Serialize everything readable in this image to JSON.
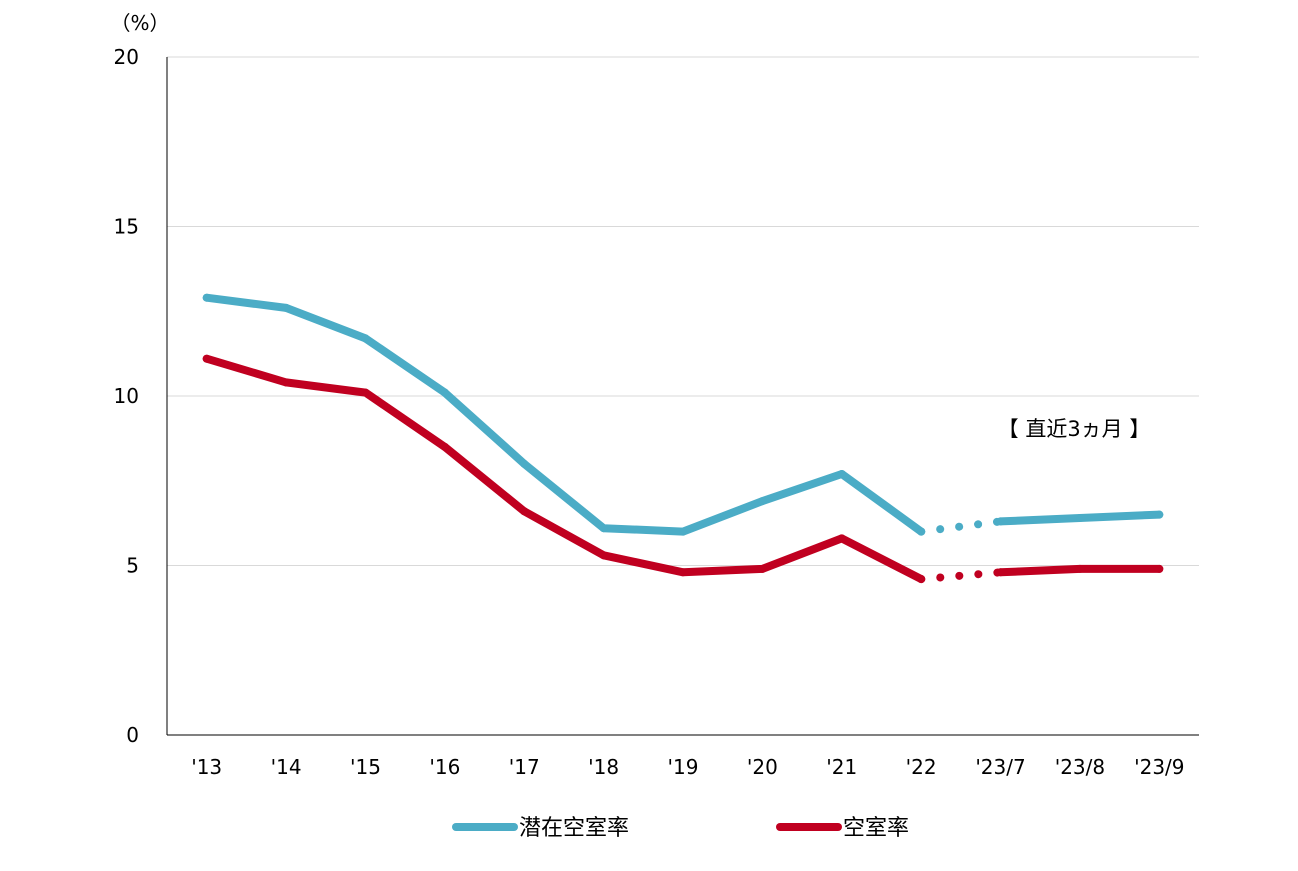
{
  "chart_data": {
    "type": "line",
    "unit_label": "（%）",
    "categories": [
      "'13",
      "'14",
      "'15",
      "'16",
      "'17",
      "'18",
      "'19",
      "'20",
      "'21",
      "'22",
      "'23/7",
      "'23/8",
      "'23/9"
    ],
    "ylim": [
      0,
      20
    ],
    "yticks": [
      0,
      5,
      10,
      15,
      20
    ],
    "grid": true,
    "legend_position": "bottom",
    "annotation": "【 直近3ヵ月 】",
    "series": [
      {
        "name": "潜在空室率",
        "color": "#4BACC6",
        "values": [
          12.9,
          12.6,
          11.7,
          10.1,
          8.0,
          6.1,
          6.0,
          6.9,
          7.7,
          6.0,
          6.3,
          6.4,
          6.5
        ]
      },
      {
        "name": "空室率",
        "color": "#C00020",
        "values": [
          11.1,
          10.4,
          10.1,
          8.5,
          6.6,
          5.3,
          4.8,
          4.9,
          5.8,
          4.6,
          4.8,
          4.9,
          4.9
        ]
      }
    ]
  }
}
